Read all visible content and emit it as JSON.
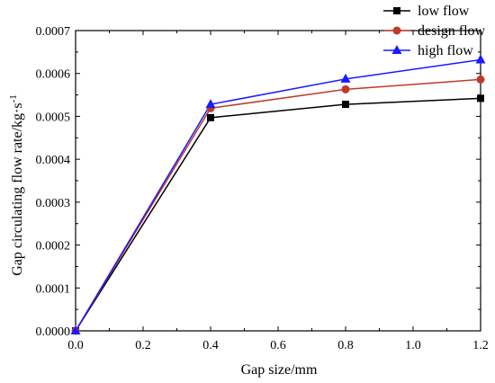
{
  "chart_data": {
    "type": "line",
    "title": "",
    "xlabel": "Gap size/mm",
    "ylabel": "Gap circulating flow rate/kg·s",
    "ylabel_superscript": "-1",
    "xlim": [
      0.0,
      1.2
    ],
    "ylim": [
      0.0,
      0.0007
    ],
    "xticks": [
      "0.0",
      "0.2",
      "0.4",
      "0.6",
      "0.8",
      "1.0",
      "1.2"
    ],
    "yticks": [
      "0.0000",
      "0.0001",
      "0.0002",
      "0.0003",
      "0.0004",
      "0.0005",
      "0.0006",
      "0.0007"
    ],
    "grid": false,
    "legend_position": "top-right",
    "x": [
      0.0,
      0.4,
      0.8,
      1.2
    ],
    "series": [
      {
        "name": "low flow",
        "marker": "square",
        "color": "#000000",
        "values": [
          0.0,
          0.000497,
          0.000528,
          0.000542
        ]
      },
      {
        "name": "design flow",
        "marker": "circle",
        "color": "#c0392b",
        "values": [
          0.0,
          0.000519,
          0.000563,
          0.000586
        ]
      },
      {
        "name": "high flow",
        "marker": "triangle",
        "color": "#1a1aff",
        "values": [
          0.0,
          0.000528,
          0.000587,
          0.000632
        ]
      }
    ]
  }
}
